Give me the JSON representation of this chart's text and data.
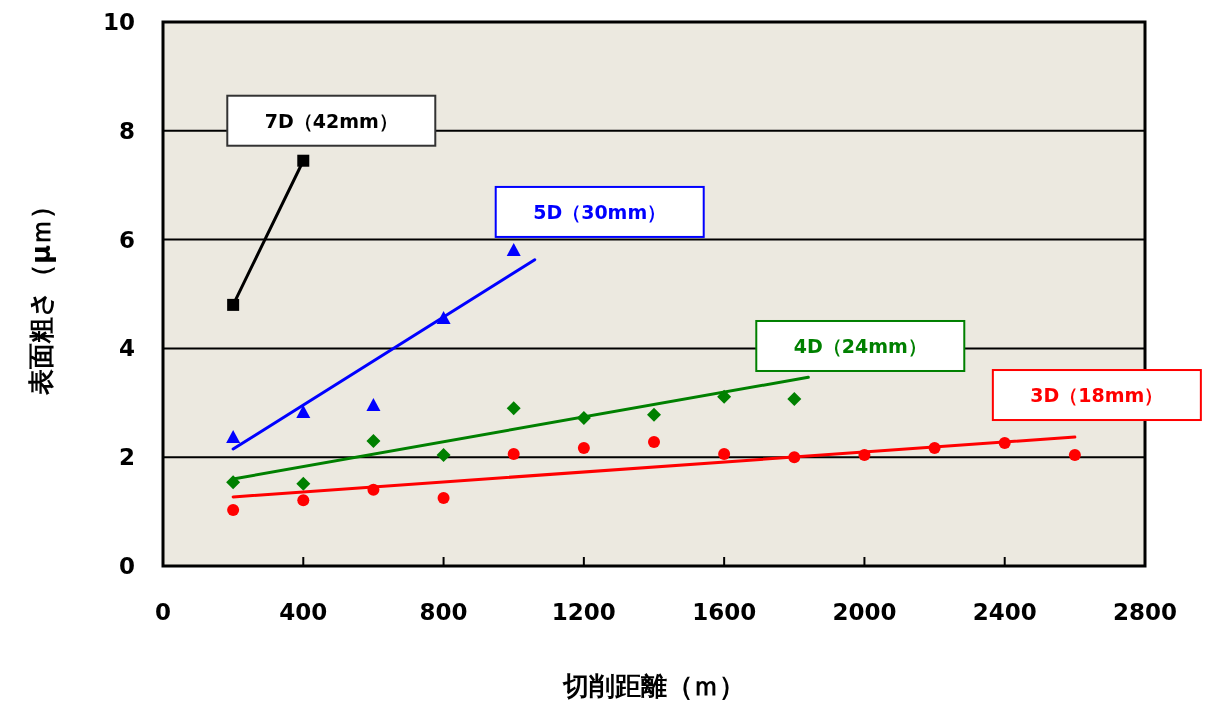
{
  "chart_data": {
    "type": "scatter",
    "xlabel": "切削距離（ｍ）",
    "ylabel": "表面粗さ（μｍ）",
    "xlim": [
      0,
      2800
    ],
    "ylim": [
      0,
      10
    ],
    "xticks": [
      0,
      400,
      800,
      1200,
      1600,
      2000,
      2400,
      2800
    ],
    "yticks": [
      0,
      2,
      4,
      6,
      8,
      10
    ],
    "grid": "y",
    "series": [
      {
        "name": "7D（42mm）",
        "type": "line",
        "marker": "square",
        "color": "#000000",
        "x": [
          200,
          400
        ],
        "values": [
          4.8,
          7.45
        ]
      },
      {
        "name": "5D（30mm）",
        "type": "scatter",
        "marker": "triangle",
        "color": "#0000ff",
        "x": [
          200,
          400,
          600,
          800,
          1000
        ],
        "values": [
          2.37,
          2.83,
          2.96,
          4.56,
          5.81
        ]
      },
      {
        "type": "line",
        "marker": "none",
        "color": "#0000ff",
        "x": [
          200,
          1060
        ],
        "values": [
          2.15,
          5.63
        ]
      },
      {
        "name": "4D（24mm）",
        "type": "scatter",
        "marker": "diamond",
        "color": "#008000",
        "x": [
          200,
          400,
          600,
          800,
          1000,
          1200,
          1400,
          1600,
          1800
        ],
        "values": [
          1.54,
          1.51,
          2.3,
          2.04,
          2.9,
          2.72,
          2.78,
          3.11,
          3.07
        ]
      },
      {
        "type": "line",
        "marker": "none",
        "color": "#008000",
        "x": [
          200,
          1840
        ],
        "values": [
          1.6,
          3.47
        ]
      },
      {
        "name": "3D（18mm）",
        "type": "scatter",
        "marker": "circle",
        "color": "#ff0000",
        "x": [
          200,
          400,
          600,
          800,
          1000,
          1200,
          1400,
          1600,
          1800,
          2000,
          2200,
          2400,
          2600
        ],
        "values": [
          1.03,
          1.21,
          1.4,
          1.25,
          2.06,
          2.17,
          2.28,
          2.06,
          2.0,
          2.04,
          2.17,
          2.26,
          2.04
        ]
      },
      {
        "type": "line",
        "marker": "none",
        "color": "#ff0000",
        "x": [
          200,
          2600
        ],
        "values": [
          1.27,
          2.37
        ]
      }
    ]
  }
}
